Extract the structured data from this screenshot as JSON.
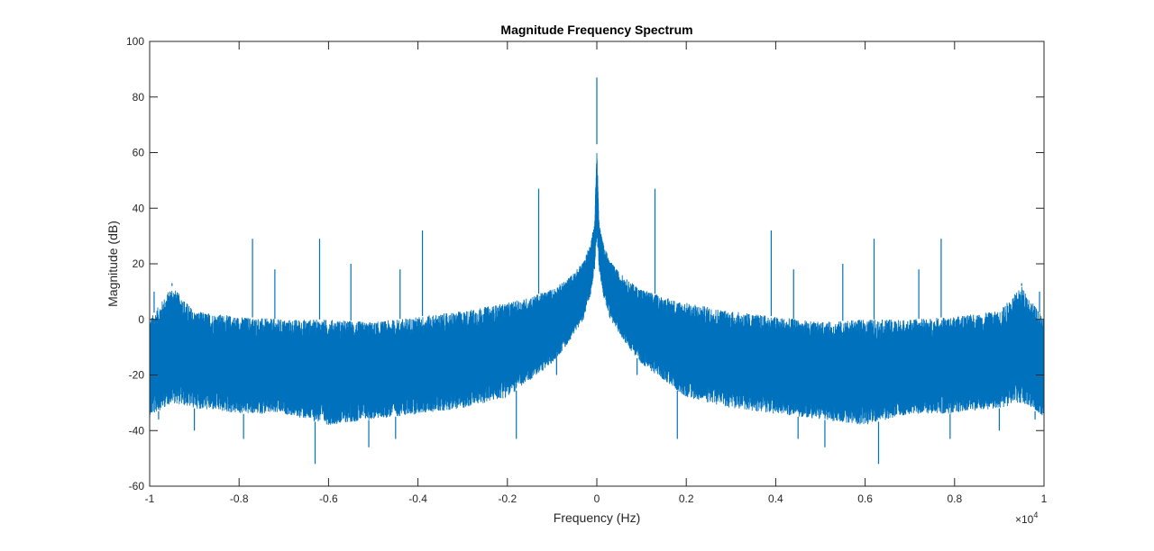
{
  "chart_data": {
    "type": "line",
    "title": "Magnitude Frequency Spectrum",
    "xlabel": "Frequency (Hz)",
    "ylabel": "Magnitude (dB)",
    "x_exponent_label": "×10",
    "x_exponent_power": "4",
    "xlim": [
      -10000,
      10000
    ],
    "ylim": [
      -60,
      100
    ],
    "x_ticks": [
      -10000,
      -8000,
      -6000,
      -4000,
      -2000,
      0,
      2000,
      4000,
      6000,
      8000,
      10000
    ],
    "x_tick_labels": [
      "-1",
      "-0.8",
      "-0.6",
      "-0.4",
      "-0.2",
      "0",
      "0.2",
      "0.4",
      "0.6",
      "0.8",
      "1"
    ],
    "y_ticks": [
      -60,
      -40,
      -20,
      0,
      20,
      40,
      60,
      80,
      100
    ],
    "y_tick_labels": [
      "-60",
      "-40",
      "-20",
      "0",
      "20",
      "40",
      "60",
      "80",
      "100"
    ],
    "grid": false,
    "line_color": "#0072BD",
    "series": [
      {
        "x": [
          -10000,
          -9500,
          -9000,
          -8000,
          -7000,
          -6000,
          -5000,
          -4000,
          -3000,
          -2000,
          -1500,
          -1000,
          -700,
          -500,
          -300,
          -150,
          -50,
          0,
          50,
          150,
          300,
          500,
          700,
          1000,
          1500,
          2000,
          3000,
          4000,
          5000,
          6000,
          7000,
          8000,
          9000,
          9500,
          10000
        ],
        "upper_envelope": [
          0,
          12,
          3,
          1,
          0,
          0,
          -1,
          1,
          3,
          6,
          8,
          11,
          14,
          17,
          21,
          27,
          35,
          63,
          35,
          27,
          21,
          17,
          14,
          11,
          8,
          6,
          3,
          1,
          -1,
          0,
          0,
          1,
          3,
          12,
          0
        ],
        "lower_envelope": [
          -35,
          -30,
          -32,
          -34,
          -34,
          -38,
          -36,
          -34,
          -32,
          -28,
          -22,
          -16,
          -10,
          -5,
          0,
          8,
          18,
          30,
          18,
          8,
          0,
          -5,
          -10,
          -16,
          -22,
          -28,
          -32,
          -34,
          -36,
          -38,
          -34,
          -34,
          -32,
          -30,
          -35
        ]
      }
    ],
    "peaks": [
      {
        "x": -9900,
        "y": 10
      },
      {
        "x": -9500,
        "y": 13
      },
      {
        "x": -9400,
        "y": 9
      },
      {
        "x": -7700,
        "y": 29
      },
      {
        "x": -7200,
        "y": 18
      },
      {
        "x": -6200,
        "y": 29
      },
      {
        "x": -5500,
        "y": 20
      },
      {
        "x": -4400,
        "y": 18
      },
      {
        "x": -3900,
        "y": 32
      },
      {
        "x": -1300,
        "y": 47
      },
      {
        "x": 0,
        "y": 87
      },
      {
        "x": 1300,
        "y": 47
      },
      {
        "x": 3900,
        "y": 32
      },
      {
        "x": 4400,
        "y": 18
      },
      {
        "x": 5500,
        "y": 20
      },
      {
        "x": 6200,
        "y": 29
      },
      {
        "x": 7200,
        "y": 18
      },
      {
        "x": 7700,
        "y": 29
      },
      {
        "x": 9400,
        "y": 9
      },
      {
        "x": 9500,
        "y": 13
      },
      {
        "x": 9900,
        "y": 10
      }
    ],
    "troughs": [
      {
        "x": -9800,
        "y": -36
      },
      {
        "x": -9000,
        "y": -40
      },
      {
        "x": -7900,
        "y": -43
      },
      {
        "x": -6300,
        "y": -52
      },
      {
        "x": -5100,
        "y": -46
      },
      {
        "x": -4500,
        "y": -43
      },
      {
        "x": -1800,
        "y": -43
      },
      {
        "x": -900,
        "y": -20
      },
      {
        "x": 900,
        "y": -20
      },
      {
        "x": 1800,
        "y": -43
      },
      {
        "x": 4500,
        "y": -43
      },
      {
        "x": 5100,
        "y": -46
      },
      {
        "x": 6300,
        "y": -52
      },
      {
        "x": 7900,
        "y": -43
      },
      {
        "x": 9000,
        "y": -40
      },
      {
        "x": 9800,
        "y": -36
      }
    ]
  }
}
